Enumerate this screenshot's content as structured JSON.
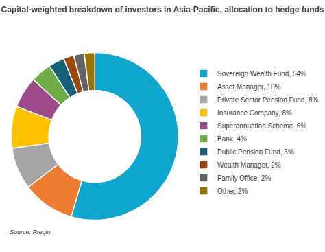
{
  "chart_data": {
    "type": "pie",
    "title": "Capital-weighted breakdown of investors in Asia-Pacific, allocation to hedge funds",
    "categories": [
      "Sovereign Wealth Fund, 54%",
      "Asset Manager, 10%",
      "Private Sector Pension Fund, 8%",
      "Insurance Company, 8%",
      "Superannuation Scheme. 6%",
      "Bank, 4%",
      "Public Pension Fund, 3%",
      "Wealth Manager, 2%",
      "Family Office, 2%",
      "Other, 2%"
    ],
    "values": [
      54,
      10,
      8,
      8,
      6,
      4,
      3,
      2,
      2,
      2
    ],
    "colors": [
      "#0ea5cf",
      "#ed7d31",
      "#a5a5a5",
      "#ffc000",
      "#9e4a8a",
      "#70ad47",
      "#17607a",
      "#9e480e",
      "#636363",
      "#997300"
    ],
    "legend": "right",
    "data_labels": false,
    "annotations": [
      "Source: Preqin"
    ]
  }
}
